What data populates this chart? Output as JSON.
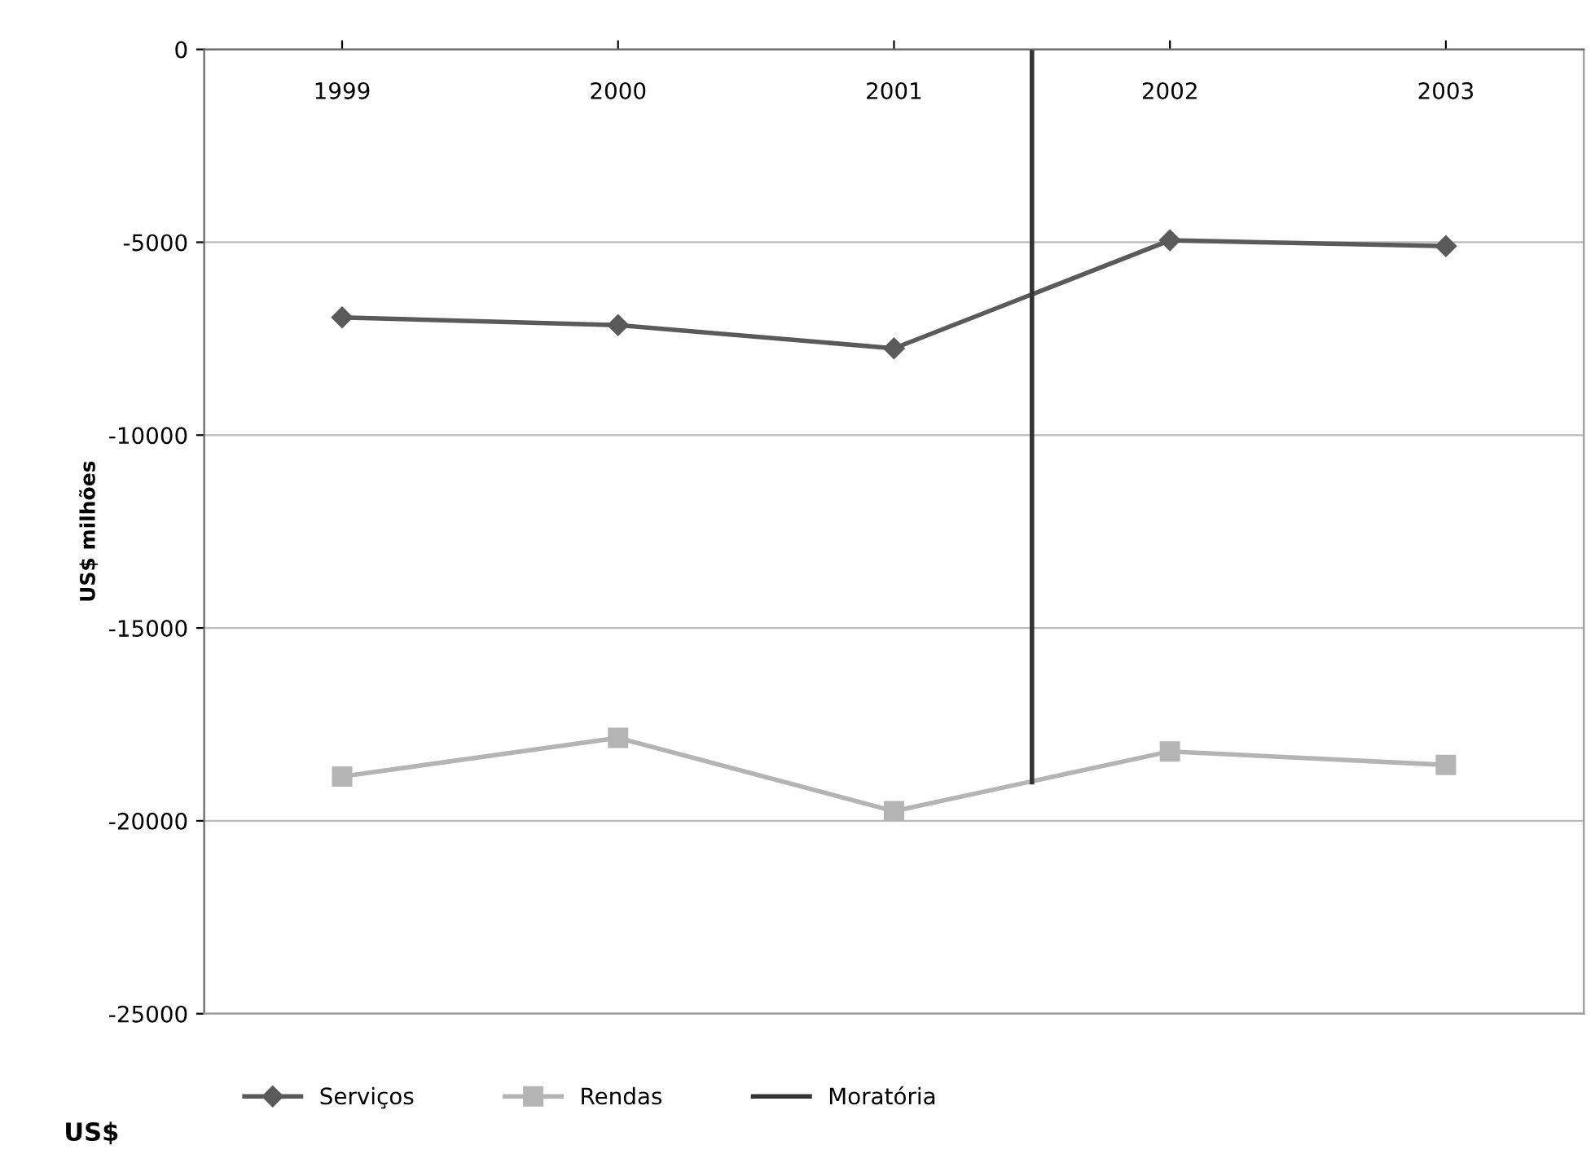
{
  "chart_data": {
    "type": "line",
    "ylabel": "US$ milhões",
    "x": [
      1999,
      2000,
      2001,
      2002,
      2003
    ],
    "xlim": [
      1998.5,
      2003.5
    ],
    "xticks": [
      1999,
      2000,
      2001,
      2002,
      2003
    ],
    "ylim": [
      -25000,
      0
    ],
    "yticks": [
      -25000,
      -20000,
      -15000,
      -10000,
      -5000,
      0
    ],
    "series": [
      {
        "name": "Serviços",
        "color": "#5a5a5a",
        "marker": "diamond",
        "values": [
          -6950,
          -7150,
          -7750,
          -4950,
          -5100
        ]
      },
      {
        "name": "Rendas",
        "color": "#b4b4b4",
        "marker": "square",
        "values": [
          -18850,
          -17850,
          -19750,
          -18200,
          -18550
        ]
      },
      {
        "name": "Moratória",
        "color": "#333333",
        "marker": "none",
        "x": [
          2001.5,
          2001.5
        ],
        "values": [
          0,
          -19000
        ]
      }
    ],
    "grid": "y",
    "legend": "bottom",
    "annotations": [
      "US$"
    ]
  }
}
